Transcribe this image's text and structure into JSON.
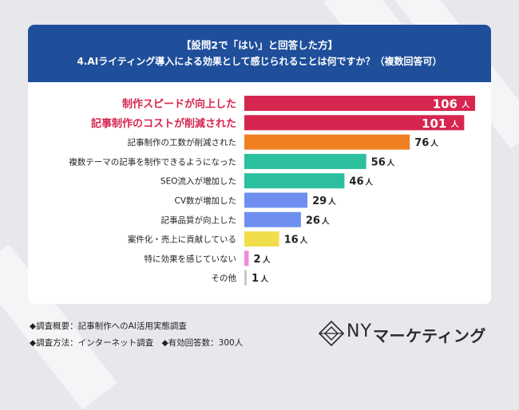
{
  "header": {
    "line1": "【設問2で「はい」と回答した方】",
    "line2": "4.AIライティング導入による効果として感じられることは何ですか？（複数回答可）"
  },
  "chart_data": {
    "type": "bar",
    "orientation": "horizontal",
    "unit": "人",
    "categories": [
      "制作スピードが向上した",
      "記事制作のコストが削減された",
      "記事制作の工数が削減された",
      "複数テーマの記事を制作できるようになった",
      "SEO流入が増加した",
      "CV数が増加した",
      "記事品質が向上した",
      "案件化・売上に貢献している",
      "特に効果を感じていない",
      "その他"
    ],
    "values": [
      106,
      101,
      76,
      56,
      46,
      29,
      26,
      16,
      2,
      1
    ],
    "colors": [
      "#d6264f",
      "#d6264f",
      "#f07f22",
      "#2cbf9e",
      "#2cbf9e",
      "#6f8ff0",
      "#6f8ff0",
      "#f2de4a",
      "#f08ad8",
      "#c8c8c8"
    ],
    "highlight_color": "#d6264f",
    "label_color": "#222222",
    "highlighted": [
      true,
      true,
      false,
      false,
      false,
      false,
      false,
      false,
      false,
      false
    ],
    "xlim": [
      0,
      110
    ]
  },
  "footer": {
    "line1": "◆調査概要：記事制作へのAI活用実態調査",
    "line2": "◆調査方法：インターネット調査　◆有効回答数：300人"
  },
  "logo": {
    "mark": "NY",
    "text": "マーケティング"
  },
  "colors": {
    "banner": "#1f4f9b",
    "background": "#e6e8ec",
    "card": "#ffffff"
  }
}
